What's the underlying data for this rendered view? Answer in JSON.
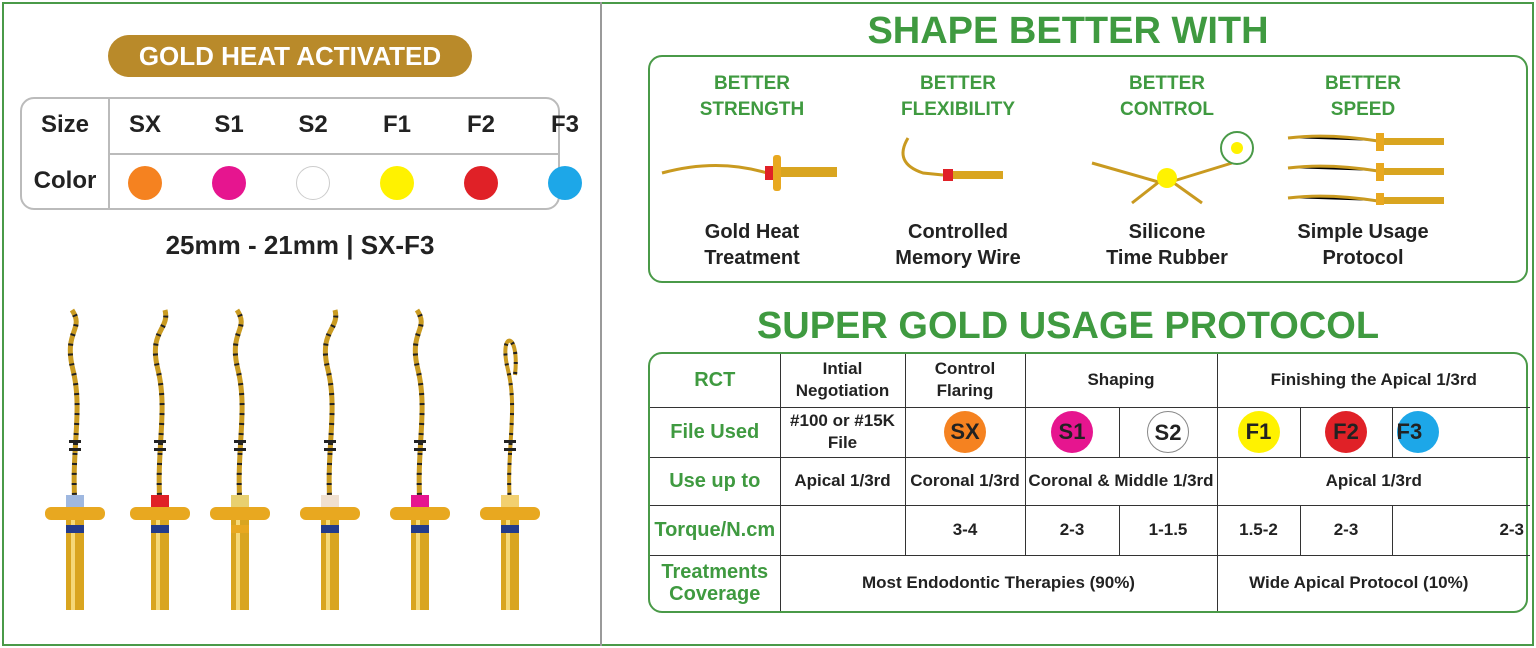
{
  "left": {
    "badge": "GOLD HEAT ACTIVATED",
    "size_label": "Size",
    "color_label": "Color",
    "sizes": [
      {
        "name": "SX",
        "color": "#f58220"
      },
      {
        "name": "S1",
        "color": "#e6158f"
      },
      {
        "name": "S2",
        "color": "#ffffff"
      },
      {
        "name": "F1",
        "color": "#fff200"
      },
      {
        "name": "F2",
        "color": "#e02127"
      },
      {
        "name": "F3",
        "color": "#1da7e8"
      }
    ],
    "spec": "25mm - 21mm | SX-F3"
  },
  "shape": {
    "title": "SHAPE BETTER WITH",
    "features": [
      {
        "heading1": "BETTER",
        "heading2": "STRENGTH",
        "caption1": "Gold Heat",
        "caption2": "Treatment"
      },
      {
        "heading1": "BETTER",
        "heading2": "FLEXIBILITY",
        "caption1": "Controlled",
        "caption2": "Memory Wire"
      },
      {
        "heading1": "BETTER",
        "heading2": "CONTROL",
        "caption1": "Silicone",
        "caption2": "Time Rubber"
      },
      {
        "heading1": "BETTER",
        "heading2": "SPEED",
        "caption1": "Simple Usage",
        "caption2": "Protocol"
      }
    ]
  },
  "protocol": {
    "title": "SUPER GOLD USAGE PROTOCOL",
    "header": {
      "label": "RCT",
      "c1": "Intial Negotiation",
      "c2": "Control Flaring",
      "c3": "Shaping",
      "c4": "Finishing the Apical 1/3rd"
    },
    "files": {
      "label": "File Used",
      "c1": "#100 or #15K File",
      "sx": "SX",
      "s1": "S1",
      "s2": "S2",
      "f1": "F1",
      "f2": "F2",
      "f3": "F3"
    },
    "use": {
      "label": "Use up to",
      "c1": "Apical 1/3rd",
      "c2": "Coronal 1/3rd",
      "c3": "Coronal & Middle 1/3rd",
      "c4": "Apical 1/3rd"
    },
    "torque": {
      "label": "Torque/N.cm",
      "c1": "",
      "sx": "3-4",
      "s1": "2-3",
      "s2": "1-1.5",
      "f1": "1.5-2",
      "f2": "2-3",
      "f3": "2-3"
    },
    "coverage": {
      "label": "Treatments Coverage",
      "c1": "Most Endodontic Therapies (90%)",
      "c2": "Wide Apical Protocol (10%)"
    }
  }
}
